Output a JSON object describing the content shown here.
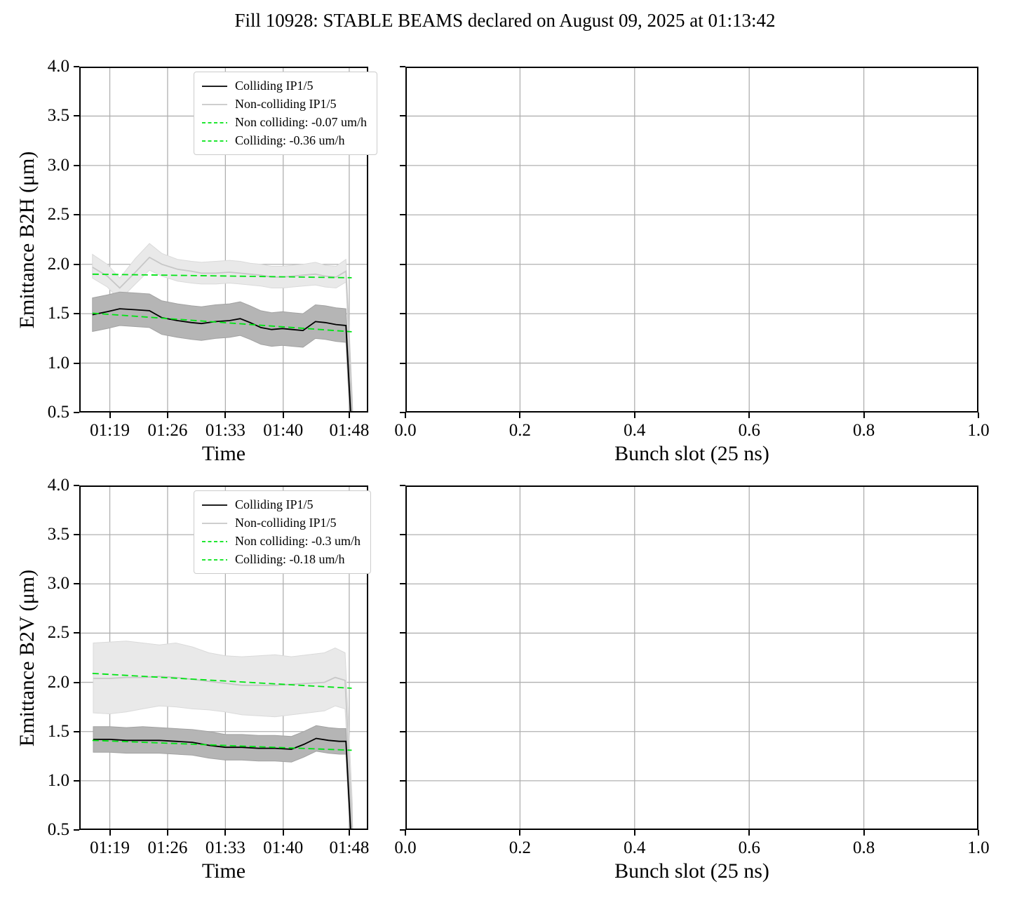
{
  "figure": {
    "title": "Fill 10928: STABLE BEAMS declared on August 09, 2025 at 01:13:42"
  },
  "colors": {
    "background": "#ffffff",
    "grid": "#b0b0b0",
    "spine": "#000000",
    "colliding_line": "#000000",
    "noncolliding_line": "#c7c7c7",
    "colliding_band": "#b5b5b5",
    "colliding_band_edge": "#a2a2a2",
    "noncolliding_band": "#e9e9e9",
    "noncolliding_band_edge": "#dadada",
    "trend_green": "#00e414"
  },
  "chart_data": [
    {
      "id": "emittance-b2h-vs-time",
      "type": "line",
      "grid": true,
      "title": "",
      "xlabel": "Time",
      "ylabel": "Emittance B2H (μm)",
      "x_axis": {
        "range": [
          75.3,
          110.3
        ],
        "ticks": [
          79,
          86,
          93,
          100,
          108
        ],
        "tick_labels": [
          "01:19",
          "01:26",
          "01:33",
          "01:40",
          "01:48"
        ]
      },
      "y_axis": {
        "range": [
          0.5,
          4.0
        ],
        "ticks": [
          0.5,
          1.0,
          1.5,
          2.0,
          2.5,
          3.0,
          3.5,
          4.0
        ],
        "tick_labels": [
          "0.5",
          "1.0",
          "1.5",
          "2.0",
          "2.5",
          "3.0",
          "3.5",
          "4.0"
        ]
      },
      "legend": {
        "position": "upper center",
        "entries": [
          {
            "label": "Colliding IP1/5",
            "style": "solid",
            "color": "#000000"
          },
          {
            "label": "Non-colliding IP1/5",
            "style": "solid",
            "color": "#c7c7c7"
          },
          {
            "label": "Non colliding: -0.07 um/h",
            "style": "dashed",
            "color": "#00e414"
          },
          {
            "label": "Colliding: -0.36 um/h",
            "style": "dashed",
            "color": "#00e414"
          }
        ]
      },
      "series": [
        {
          "name": "noncolliding-band",
          "type": "band",
          "fill": "#e9e9e9",
          "edge": "#dadada",
          "x": [
            76.9,
            78.7,
            80.2,
            82.1,
            83.8,
            85.3,
            87.2,
            88.9,
            90.1,
            91.8,
            93.5,
            94.8,
            96.0,
            97.3,
            98.6,
            99.9,
            101.1,
            102.4,
            103.9,
            105.1,
            106.4,
            107.6,
            108.4
          ],
          "hi": [
            2.1,
            2.0,
            1.86,
            2.06,
            2.21,
            2.11,
            2.05,
            2.03,
            2.02,
            2.03,
            2.04,
            2.03,
            2.01,
            2.0,
            1.98,
            1.98,
            1.99,
            2.0,
            2.02,
            1.99,
            1.98,
            2.05,
            0.62
          ],
          "lo": [
            1.86,
            1.77,
            1.64,
            1.8,
            1.94,
            1.88,
            1.83,
            1.81,
            1.8,
            1.8,
            1.81,
            1.8,
            1.79,
            1.78,
            1.76,
            1.76,
            1.77,
            1.78,
            1.79,
            1.77,
            1.76,
            1.82,
            0.4
          ]
        },
        {
          "name": "colliding-band",
          "type": "band",
          "fill": "#b5b5b5",
          "edge": "#a2a2a2",
          "x": [
            76.9,
            78.7,
            80.2,
            82.1,
            83.8,
            85.3,
            87.2,
            88.9,
            90.1,
            91.8,
            93.5,
            94.8,
            96.0,
            97.3,
            98.6,
            99.9,
            101.1,
            102.4,
            103.9,
            105.1,
            106.4,
            107.6,
            108.3
          ],
          "hi": [
            1.66,
            1.69,
            1.72,
            1.71,
            1.7,
            1.63,
            1.6,
            1.58,
            1.57,
            1.59,
            1.6,
            1.62,
            1.58,
            1.53,
            1.51,
            1.52,
            1.51,
            1.5,
            1.59,
            1.58,
            1.56,
            1.55,
            0.45
          ],
          "lo": [
            1.32,
            1.35,
            1.38,
            1.37,
            1.36,
            1.29,
            1.26,
            1.24,
            1.23,
            1.25,
            1.26,
            1.28,
            1.24,
            1.19,
            1.17,
            1.18,
            1.17,
            1.16,
            1.25,
            1.24,
            1.22,
            1.21,
            0.11
          ]
        },
        {
          "name": "non-colliding-ip15",
          "type": "line",
          "color": "#c7c7c7",
          "width": 1.8,
          "x": [
            76.9,
            78.7,
            80.2,
            82.1,
            83.8,
            85.3,
            87.2,
            88.9,
            90.1,
            91.8,
            93.5,
            94.8,
            96.0,
            97.3,
            98.6,
            99.9,
            101.1,
            102.4,
            103.9,
            105.1,
            106.4,
            107.6,
            108.4
          ],
          "y": [
            1.97,
            1.88,
            1.76,
            1.92,
            2.07,
            2.0,
            1.95,
            1.93,
            1.91,
            1.91,
            1.92,
            1.91,
            1.9,
            1.89,
            1.87,
            1.87,
            1.88,
            1.89,
            1.9,
            1.88,
            1.87,
            1.93,
            0.5
          ]
        },
        {
          "name": "colliding-ip15",
          "type": "line",
          "color": "#000000",
          "width": 1.8,
          "x": [
            76.9,
            78.7,
            80.2,
            82.1,
            83.8,
            85.3,
            87.2,
            88.9,
            90.1,
            91.8,
            93.5,
            94.8,
            96.0,
            97.3,
            98.6,
            99.9,
            101.1,
            102.4,
            103.9,
            105.1,
            106.4,
            107.6,
            108.3
          ],
          "y": [
            1.49,
            1.52,
            1.55,
            1.54,
            1.53,
            1.46,
            1.43,
            1.41,
            1.4,
            1.42,
            1.43,
            1.45,
            1.41,
            1.36,
            1.34,
            1.35,
            1.34,
            1.33,
            1.42,
            1.41,
            1.39,
            1.38,
            0.28
          ]
        },
        {
          "name": "noncolliding-trend",
          "type": "dashed",
          "color": "#00e414",
          "width": 1.8,
          "x": [
            76.9,
            108.3
          ],
          "y": [
            1.9,
            1.864
          ],
          "rate_label": "-0.07 um/h"
        },
        {
          "name": "colliding-trend",
          "type": "dashed",
          "color": "#00e414",
          "width": 1.8,
          "x": [
            76.9,
            108.3
          ],
          "y": [
            1.505,
            1.317
          ],
          "rate_label": "-0.36 um/h"
        }
      ]
    },
    {
      "id": "b2h-bunch-slot",
      "type": "line",
      "grid": true,
      "title": "",
      "xlabel": "Bunch slot (25 ns)",
      "ylabel": null,
      "x_axis": {
        "range": [
          0.0,
          1.0
        ],
        "ticks": [
          0.0,
          0.2,
          0.4,
          0.6,
          0.8,
          1.0
        ],
        "tick_labels": [
          "0.0",
          "0.2",
          "0.4",
          "0.6",
          "0.8",
          "1.0"
        ]
      },
      "y_axis": {
        "range": [
          0.5,
          4.0
        ],
        "ticks": [
          0.5,
          1.0,
          1.5,
          2.0,
          2.5,
          3.0,
          3.5,
          4.0
        ],
        "tick_labels": []
      },
      "legend": null,
      "series": []
    },
    {
      "id": "emittance-b2v-vs-time",
      "type": "line",
      "grid": true,
      "title": "",
      "xlabel": "Time",
      "ylabel": "Emittance B2V (μm)",
      "x_axis": {
        "range": [
          75.3,
          110.3
        ],
        "ticks": [
          79,
          86,
          93,
          100,
          108
        ],
        "tick_labels": [
          "01:19",
          "01:26",
          "01:33",
          "01:40",
          "01:48"
        ]
      },
      "y_axis": {
        "range": [
          0.5,
          4.0
        ],
        "ticks": [
          0.5,
          1.0,
          1.5,
          2.0,
          2.5,
          3.0,
          3.5,
          4.0
        ],
        "tick_labels": [
          "0.5",
          "1.0",
          "1.5",
          "2.0",
          "2.5",
          "3.0",
          "3.5",
          "4.0"
        ]
      },
      "legend": {
        "position": "upper center",
        "entries": [
          {
            "label": "Colliding IP1/5",
            "style": "solid",
            "color": "#000000"
          },
          {
            "label": "Non-colliding IP1/5",
            "style": "solid",
            "color": "#c7c7c7"
          },
          {
            "label": "Non colliding: -0.3 um/h",
            "style": "dashed",
            "color": "#00e414"
          },
          {
            "label": "Colliding: -0.18 um/h",
            "style": "dashed",
            "color": "#00e414"
          }
        ]
      },
      "series": [
        {
          "name": "noncolliding-band",
          "type": "band",
          "fill": "#e9e9e9",
          "edge": "#dadada",
          "x": [
            77.0,
            79.0,
            81.0,
            83.0,
            85.0,
            87.0,
            89.0,
            91.0,
            93.0,
            95.0,
            97.0,
            99.0,
            101.0,
            103.0,
            105.0,
            106.3,
            107.5,
            108.4
          ],
          "hi": [
            2.4,
            2.41,
            2.42,
            2.4,
            2.38,
            2.4,
            2.36,
            2.3,
            2.27,
            2.26,
            2.27,
            2.28,
            2.26,
            2.28,
            2.3,
            2.35,
            2.3,
            0.75
          ],
          "lo": [
            1.69,
            1.68,
            1.7,
            1.73,
            1.76,
            1.75,
            1.73,
            1.72,
            1.7,
            1.67,
            1.66,
            1.65,
            1.67,
            1.69,
            1.71,
            1.76,
            1.73,
            0.3
          ]
        },
        {
          "name": "colliding-band",
          "type": "band",
          "fill": "#b5b5b5",
          "edge": "#a2a2a2",
          "x": [
            77.0,
            79.0,
            81.0,
            83.0,
            85.0,
            87.0,
            89.0,
            91.0,
            93.0,
            95.0,
            97.0,
            99.0,
            101.0,
            102.5,
            104.0,
            105.5,
            106.8,
            107.6,
            108.3
          ],
          "hi": [
            1.55,
            1.55,
            1.54,
            1.55,
            1.54,
            1.53,
            1.52,
            1.5,
            1.47,
            1.47,
            1.46,
            1.46,
            1.45,
            1.5,
            1.56,
            1.54,
            1.53,
            1.53,
            0.42
          ],
          "lo": [
            1.29,
            1.29,
            1.28,
            1.28,
            1.28,
            1.27,
            1.26,
            1.23,
            1.21,
            1.21,
            1.2,
            1.2,
            1.19,
            1.24,
            1.3,
            1.28,
            1.27,
            1.27,
            0.14
          ]
        },
        {
          "name": "non-colliding-ip15",
          "type": "line",
          "color": "#c7c7c7",
          "width": 1.8,
          "x": [
            77.0,
            79.0,
            81.0,
            83.0,
            85.0,
            87.0,
            89.0,
            91.0,
            93.0,
            95.0,
            97.0,
            99.0,
            101.0,
            103.0,
            105.0,
            106.3,
            107.5,
            108.4
          ],
          "y": [
            2.04,
            2.04,
            2.05,
            2.05,
            2.06,
            2.05,
            2.03,
            2.01,
            1.99,
            1.97,
            1.97,
            1.97,
            1.98,
            1.99,
            2.0,
            2.05,
            2.02,
            0.5
          ]
        },
        {
          "name": "colliding-ip15",
          "type": "line",
          "color": "#000000",
          "width": 1.8,
          "x": [
            77.0,
            79.0,
            81.0,
            83.0,
            85.0,
            87.0,
            89.0,
            91.0,
            93.0,
            95.0,
            97.0,
            99.0,
            101.0,
            102.5,
            104.0,
            105.5,
            106.8,
            107.6,
            108.3
          ],
          "y": [
            1.42,
            1.42,
            1.41,
            1.41,
            1.41,
            1.4,
            1.39,
            1.36,
            1.34,
            1.34,
            1.33,
            1.33,
            1.32,
            1.37,
            1.43,
            1.41,
            1.4,
            1.4,
            0.28
          ]
        },
        {
          "name": "noncolliding-trend",
          "type": "dashed",
          "color": "#00e414",
          "width": 1.8,
          "x": [
            76.9,
            108.3
          ],
          "y": [
            2.09,
            1.94
          ],
          "rate_label": "-0.3 um/h"
        },
        {
          "name": "colliding-trend",
          "type": "dashed",
          "color": "#00e414",
          "width": 1.8,
          "x": [
            76.9,
            108.3
          ],
          "y": [
            1.41,
            1.31
          ],
          "rate_label": "-0.18 um/h"
        }
      ]
    },
    {
      "id": "b2v-bunch-slot",
      "type": "line",
      "grid": true,
      "title": "",
      "xlabel": "Bunch slot (25 ns)",
      "ylabel": null,
      "x_axis": {
        "range": [
          0.0,
          1.0
        ],
        "ticks": [
          0.0,
          0.2,
          0.4,
          0.6,
          0.8,
          1.0
        ],
        "tick_labels": [
          "0.0",
          "0.2",
          "0.4",
          "0.6",
          "0.8",
          "1.0"
        ]
      },
      "y_axis": {
        "range": [
          0.5,
          4.0
        ],
        "ticks": [
          0.5,
          1.0,
          1.5,
          2.0,
          2.5,
          3.0,
          3.5,
          4.0
        ],
        "tick_labels": []
      },
      "legend": null,
      "series": []
    }
  ]
}
